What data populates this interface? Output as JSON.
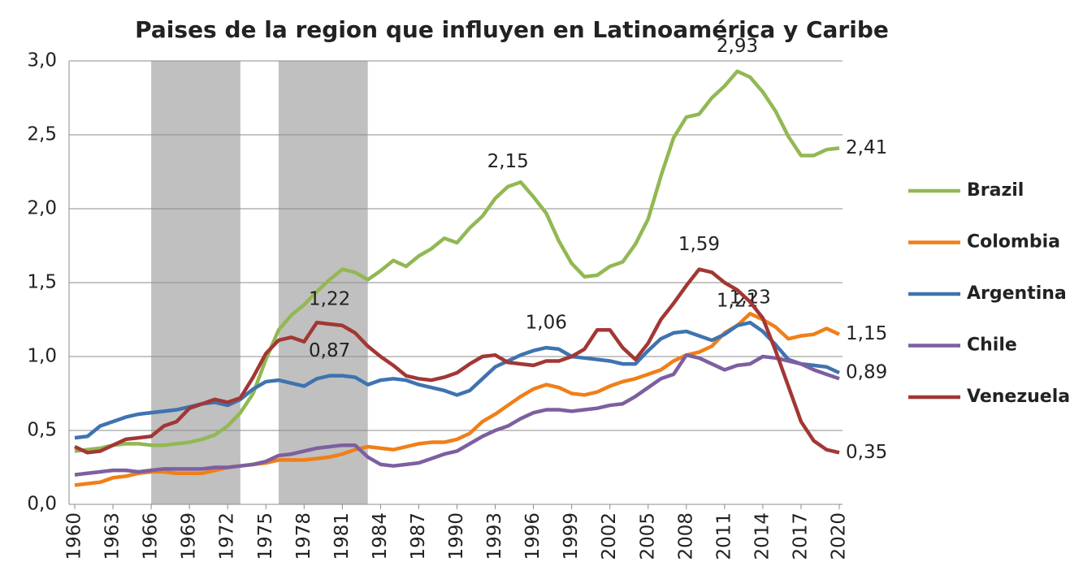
{
  "chart_data": {
    "type": "line",
    "title": "Paises de la region que influyen en Latinoamérica y Caribe",
    "x": [
      1960,
      1961,
      1962,
      1963,
      1964,
      1965,
      1966,
      1967,
      1968,
      1969,
      1970,
      1971,
      1972,
      1973,
      1974,
      1975,
      1976,
      1977,
      1978,
      1979,
      1980,
      1981,
      1982,
      1983,
      1984,
      1985,
      1986,
      1987,
      1988,
      1989,
      1990,
      1991,
      1992,
      1993,
      1994,
      1995,
      1996,
      1997,
      1998,
      1999,
      2000,
      2001,
      2002,
      2003,
      2004,
      2005,
      2006,
      2007,
      2008,
      2009,
      2010,
      2011,
      2012,
      2013,
      2014,
      2015,
      2016,
      2017,
      2018,
      2019,
      2020
    ],
    "xlim": [
      1960,
      2020
    ],
    "xticks": [
      1960,
      1963,
      1966,
      1969,
      1972,
      1975,
      1978,
      1981,
      1984,
      1987,
      1990,
      1993,
      1996,
      1999,
      2002,
      2005,
      2008,
      2011,
      2014,
      2017,
      2020
    ],
    "ylim": [
      0,
      3
    ],
    "yticks": [
      {
        "value": 0,
        "label": "0,0"
      },
      {
        "value": 0.5,
        "label": "0,5"
      },
      {
        "value": 1,
        "label": "1,0"
      },
      {
        "value": 1.5,
        "label": "1,5"
      },
      {
        "value": 2,
        "label": "2,0"
      },
      {
        "value": 2.5,
        "label": "2,5"
      },
      {
        "value": 3,
        "label": "3,0"
      }
    ],
    "grid": true,
    "legend": "right",
    "shaded_periods": [
      [
        1966,
        1973
      ],
      [
        1976,
        1983
      ]
    ],
    "shade_color": "#c0c0c0",
    "series": [
      {
        "name": "Brazil",
        "color": "#92b853",
        "values": [
          0.36,
          0.37,
          0.38,
          0.4,
          0.41,
          0.41,
          0.4,
          0.4,
          0.41,
          0.42,
          0.44,
          0.47,
          0.53,
          0.62,
          0.75,
          0.98,
          1.18,
          1.28,
          1.35,
          1.44,
          1.52,
          1.59,
          1.57,
          1.52,
          1.58,
          1.65,
          1.61,
          1.68,
          1.73,
          1.8,
          1.77,
          1.87,
          1.95,
          2.07,
          2.15,
          2.18,
          2.08,
          1.97,
          1.78,
          1.63,
          1.54,
          1.55,
          1.61,
          1.64,
          1.76,
          1.93,
          2.22,
          2.48,
          2.62,
          2.64,
          2.75,
          2.83,
          2.93,
          2.89,
          2.79,
          2.66,
          2.49,
          2.36,
          2.36,
          2.4,
          2.41
        ],
        "value_labels": {
          "34": "2,15",
          "52": "2,93",
          "60": "2,41"
        }
      },
      {
        "name": "Colombia",
        "color": "#f07f18",
        "values": [
          0.13,
          0.14,
          0.15,
          0.18,
          0.19,
          0.21,
          0.22,
          0.22,
          0.21,
          0.21,
          0.21,
          0.23,
          0.25,
          0.26,
          0.27,
          0.28,
          0.3,
          0.3,
          0.3,
          0.31,
          0.32,
          0.34,
          0.37,
          0.39,
          0.38,
          0.37,
          0.39,
          0.41,
          0.42,
          0.42,
          0.44,
          0.48,
          0.56,
          0.61,
          0.67,
          0.73,
          0.78,
          0.81,
          0.79,
          0.75,
          0.74,
          0.76,
          0.8,
          0.83,
          0.85,
          0.88,
          0.91,
          0.97,
          1.01,
          1.03,
          1.07,
          1.16,
          1.21,
          1.29,
          1.25,
          1.2,
          1.12,
          1.14,
          1.15,
          1.19,
          1.15
        ],
        "value_labels": {
          "52": "1,21",
          "60": "1,15"
        }
      },
      {
        "name": "Argentina",
        "color": "#3f73b0",
        "values": [
          0.45,
          0.46,
          0.53,
          0.56,
          0.59,
          0.61,
          0.62,
          0.63,
          0.64,
          0.66,
          0.68,
          0.69,
          0.67,
          0.71,
          0.78,
          0.83,
          0.84,
          0.82,
          0.8,
          0.85,
          0.87,
          0.87,
          0.86,
          0.81,
          0.84,
          0.85,
          0.84,
          0.81,
          0.79,
          0.77,
          0.74,
          0.77,
          0.85,
          0.93,
          0.97,
          1.01,
          1.04,
          1.06,
          1.05,
          1.0,
          0.99,
          0.98,
          0.97,
          0.95,
          0.95,
          1.04,
          1.12,
          1.16,
          1.17,
          1.14,
          1.11,
          1.15,
          1.21,
          1.23,
          1.17,
          1.08,
          0.98,
          0.95,
          0.94,
          0.93,
          0.89
        ],
        "value_labels": {
          "20": "0,87",
          "37": "1,06",
          "53": "1,23",
          "60": "0,89"
        }
      },
      {
        "name": "Chile",
        "color": "#7d5fa0",
        "values": [
          0.2,
          0.21,
          0.22,
          0.23,
          0.23,
          0.22,
          0.23,
          0.24,
          0.24,
          0.24,
          0.24,
          0.25,
          0.25,
          0.26,
          0.27,
          0.29,
          0.33,
          0.34,
          0.36,
          0.38,
          0.39,
          0.4,
          0.4,
          0.32,
          0.27,
          0.26,
          0.27,
          0.28,
          0.31,
          0.34,
          0.36,
          0.41,
          0.46,
          0.5,
          0.53,
          0.58,
          0.62,
          0.64,
          0.64,
          0.63,
          0.64,
          0.65,
          0.67,
          0.68,
          0.73,
          0.79,
          0.85,
          0.88,
          1.01,
          0.99,
          0.95,
          0.91,
          0.94,
          0.95,
          1.0,
          0.99,
          0.97,
          0.95,
          0.91,
          0.88,
          0.85
        ]
      },
      {
        "name": "Venezuela",
        "color": "#a23735",
        "values": [
          0.39,
          0.35,
          0.36,
          0.4,
          0.44,
          0.45,
          0.46,
          0.53,
          0.56,
          0.65,
          0.68,
          0.71,
          0.69,
          0.72,
          0.86,
          1.02,
          1.11,
          1.13,
          1.1,
          1.23,
          1.22,
          1.21,
          1.16,
          1.07,
          1.0,
          0.94,
          0.87,
          0.85,
          0.84,
          0.86,
          0.89,
          0.95,
          1.0,
          1.01,
          0.96,
          0.95,
          0.94,
          0.97,
          0.97,
          1.0,
          1.05,
          1.18,
          1.18,
          1.06,
          0.98,
          1.09,
          1.25,
          1.36,
          1.48,
          1.59,
          1.57,
          1.5,
          1.45,
          1.37,
          1.26,
          1.04,
          0.8,
          0.56,
          0.43,
          0.37,
          0.35
        ],
        "value_labels": {
          "20": "1,22",
          "49": "1,59",
          "60": "0,35"
        }
      }
    ]
  }
}
